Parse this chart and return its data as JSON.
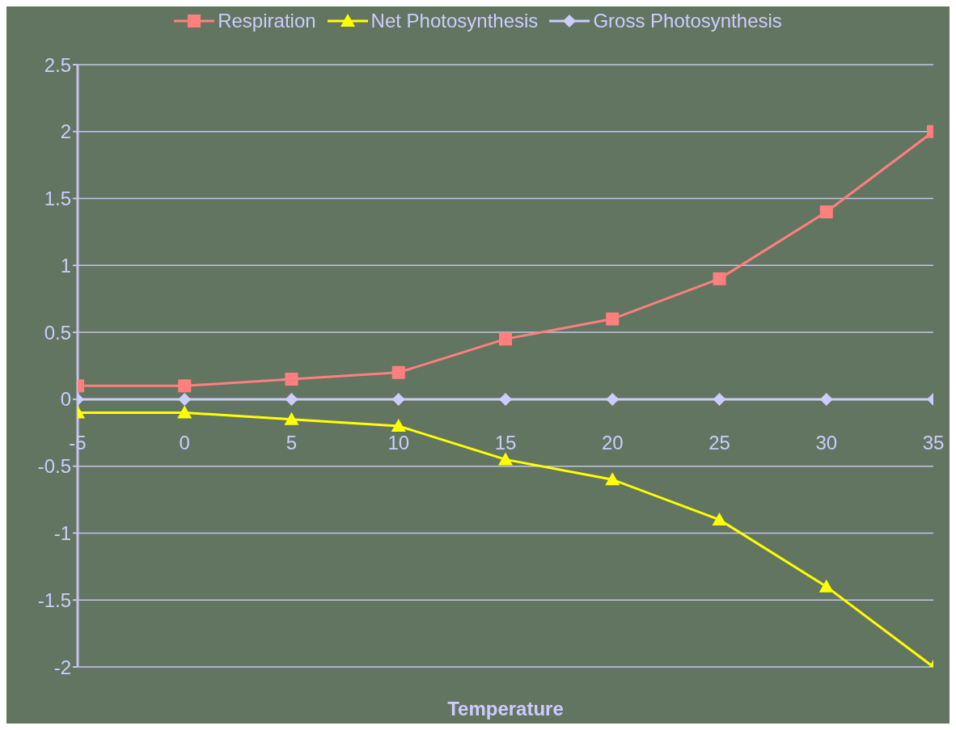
{
  "chart_data": {
    "type": "line",
    "xlabel": "Temperature",
    "x": [
      -5,
      0,
      5,
      10,
      15,
      20,
      25,
      30,
      35
    ],
    "xlim": [
      -5,
      35
    ],
    "xticks": [
      -5,
      0,
      5,
      10,
      15,
      20,
      25,
      30,
      35
    ],
    "ylim": [
      -2,
      2.5
    ],
    "yticks": [
      -2,
      -1.5,
      -1,
      -0.5,
      0,
      0.5,
      1,
      1.5,
      2,
      2.5
    ],
    "grid": "y",
    "legend": "top",
    "series": [
      {
        "name": "Respiration",
        "color": "#ff7f7f",
        "marker": "square",
        "values": [
          0.1,
          0.1,
          0.15,
          0.2,
          0.45,
          0.6,
          0.9,
          1.4,
          2
        ]
      },
      {
        "name": "Net Photosynthesis",
        "color": "#ffff00",
        "marker": "triangle",
        "values": [
          -0.1,
          -0.1,
          -0.15,
          -0.2,
          -0.45,
          -0.6,
          -0.9,
          -1.4,
          -2
        ]
      },
      {
        "name": "Gross Photosynthesis",
        "color": "#ccccff",
        "marker": "diamond",
        "values": [
          0,
          0,
          0,
          0,
          0,
          0,
          0,
          0,
          0
        ]
      }
    ]
  }
}
